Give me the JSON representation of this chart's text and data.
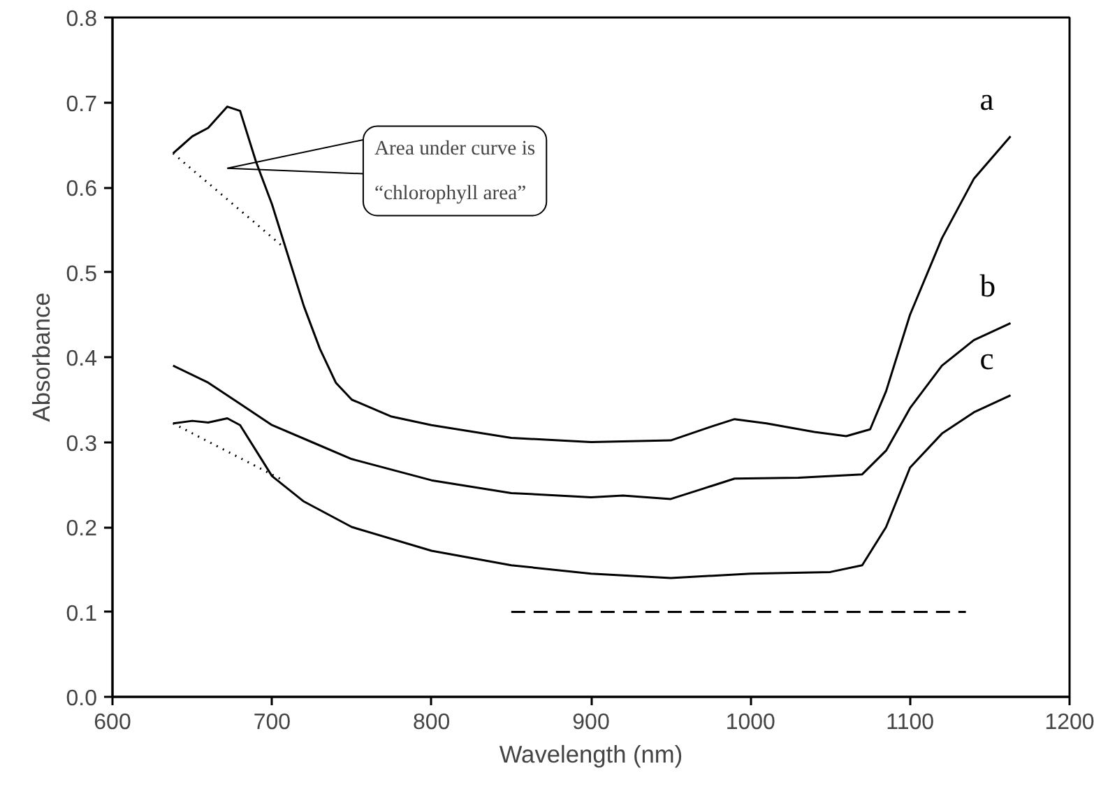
{
  "chart_data": {
    "type": "line",
    "xlabel": "Wavelength (nm)",
    "ylabel": "Absorbance",
    "xlim": [
      600,
      1200
    ],
    "ylim": [
      0,
      0.8
    ],
    "xticks": [
      600,
      700,
      800,
      900,
      1000,
      1100,
      1200
    ],
    "yticks": [
      {
        "value": 0,
        "label": "0.0"
      },
      0.1,
      0.2,
      0.3,
      0.4,
      0.5,
      0.6,
      0.7,
      0.8
    ],
    "grid": false,
    "marker": "none",
    "series": [
      {
        "name": "a",
        "color": "#000000",
        "x": [
          638,
          650,
          660,
          672,
          680,
          690,
          700,
          710,
          720,
          730,
          740,
          750,
          775,
          800,
          850,
          900,
          950,
          975,
          990,
          1010,
          1040,
          1060,
          1075,
          1085,
          1100,
          1120,
          1140,
          1163
        ],
        "values": [
          0.64,
          0.66,
          0.67,
          0.695,
          0.69,
          0.63,
          0.58,
          0.52,
          0.46,
          0.41,
          0.37,
          0.35,
          0.33,
          0.32,
          0.305,
          0.3,
          0.302,
          0.318,
          0.327,
          0.322,
          0.312,
          0.307,
          0.315,
          0.36,
          0.45,
          0.54,
          0.61,
          0.66
        ]
      },
      {
        "name": "b",
        "color": "#000000",
        "x": [
          638,
          660,
          680,
          700,
          725,
          750,
          800,
          850,
          900,
          920,
          950,
          970,
          990,
          1030,
          1070,
          1085,
          1100,
          1120,
          1140,
          1163
        ],
        "values": [
          0.39,
          0.37,
          0.345,
          0.32,
          0.3,
          0.28,
          0.255,
          0.24,
          0.235,
          0.237,
          0.233,
          0.245,
          0.257,
          0.258,
          0.262,
          0.29,
          0.34,
          0.39,
          0.42,
          0.44
        ]
      },
      {
        "name": "c",
        "color": "#000000",
        "x": [
          638,
          650,
          660,
          672,
          680,
          690,
          700,
          720,
          750,
          800,
          850,
          900,
          950,
          1000,
          1050,
          1070,
          1085,
          1100,
          1120,
          1140,
          1163
        ],
        "values": [
          0.322,
          0.325,
          0.323,
          0.328,
          0.32,
          0.29,
          0.26,
          0.23,
          0.2,
          0.172,
          0.155,
          0.145,
          0.14,
          0.145,
          0.147,
          0.155,
          0.2,
          0.27,
          0.31,
          0.335,
          0.355
        ]
      },
      {
        "color": "#000000",
        "line_style": "dotted",
        "x": [
          638,
          707
        ],
        "values": [
          0.64,
          0.53
        ]
      },
      {
        "color": "#000000",
        "line_style": "dotted",
        "x": [
          638,
          707
        ],
        "values": [
          0.322,
          0.255
        ]
      },
      {
        "color": "#000000",
        "line_style": "dashed",
        "x": [
          850,
          1135
        ],
        "values": [
          0.1,
          0.1
        ]
      }
    ],
    "annotations": [
      "Area under curve is\n“chlorophyll area”"
    ]
  }
}
